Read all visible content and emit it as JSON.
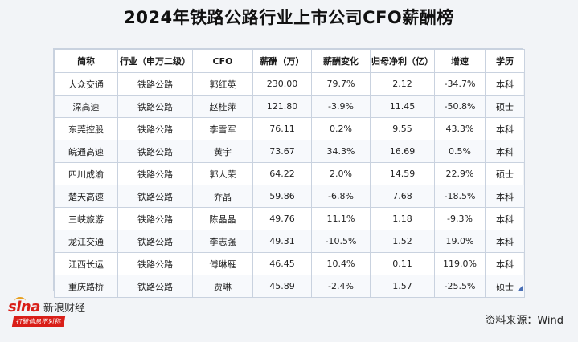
{
  "title": "2024年铁路公路行业上市公司CFO薪酬榜",
  "table": {
    "headers": [
      "简称",
      "行业（申万二级）",
      "CFO",
      "薪酬（万）",
      "薪酬变化",
      "归母净利（亿）",
      "增速",
      "学历"
    ],
    "rows": [
      [
        "大众交通",
        "铁路公路",
        "郭红英",
        "230.00",
        "79.7%",
        "2.12",
        "-34.7%",
        "本科"
      ],
      [
        "深高速",
        "铁路公路",
        "赵桂萍",
        "121.80",
        "-3.9%",
        "11.45",
        "-50.8%",
        "硕士"
      ],
      [
        "东莞控股",
        "铁路公路",
        "李雪军",
        "76.11",
        "0.2%",
        "9.55",
        "43.3%",
        "本科"
      ],
      [
        "皖通高速",
        "铁路公路",
        "黄宇",
        "73.67",
        "34.3%",
        "16.69",
        "0.5%",
        "本科"
      ],
      [
        "四川成渝",
        "铁路公路",
        "郭人荣",
        "64.22",
        "2.0%",
        "14.59",
        "22.9%",
        "硕士"
      ],
      [
        "楚天高速",
        "铁路公路",
        "乔晶",
        "59.86",
        "-6.8%",
        "7.68",
        "-18.5%",
        "本科"
      ],
      [
        "三峡旅游",
        "铁路公路",
        "陈晶晶",
        "49.76",
        "11.1%",
        "1.18",
        "-9.3%",
        "本科"
      ],
      [
        "龙江交通",
        "铁路公路",
        "李志强",
        "49.31",
        "-10.5%",
        "1.52",
        "19.0%",
        "本科"
      ],
      [
        "江西长运",
        "铁路公路",
        "傅琳雁",
        "46.45",
        "10.4%",
        "0.11",
        "119.0%",
        "本科"
      ],
      [
        "重庆路桥",
        "铁路公路",
        "贾琳",
        "45.89",
        "-2.4%",
        "1.57",
        "-25.5%",
        "硕士"
      ]
    ]
  },
  "logo": {
    "brand": "sina",
    "name": "新浪财经",
    "slogan": "打破信息不对称"
  },
  "source": "资料来源：Wind"
}
